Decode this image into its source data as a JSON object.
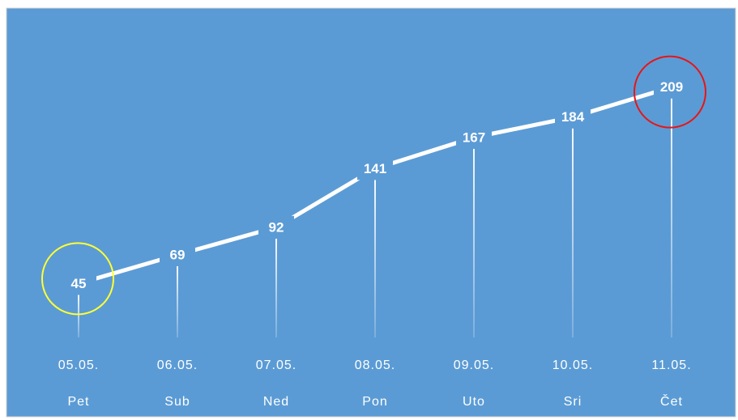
{
  "chart_data": {
    "type": "line",
    "categories": [
      "05.05.",
      "06.05.",
      "07.05.",
      "08.05.",
      "09.05.",
      "10.05.",
      "11.05."
    ],
    "weekdays": [
      "Pet",
      "Sub",
      "Ned",
      "Pon",
      "Uto",
      "Sri",
      "Čet"
    ],
    "values": [
      45,
      69,
      92,
      141,
      167,
      184,
      209
    ],
    "color": "#ffffff",
    "ylim": [
      0,
      275
    ]
  }
}
